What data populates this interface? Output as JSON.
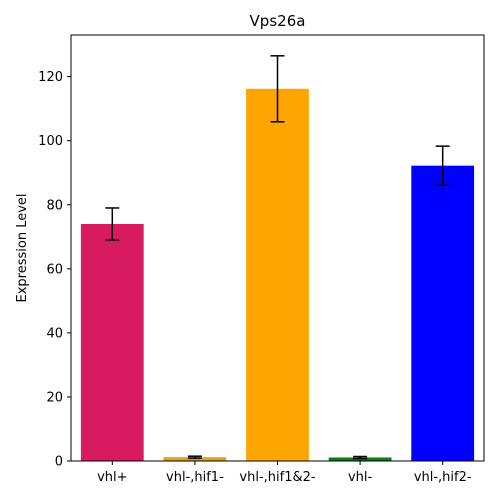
{
  "chart_data": {
    "type": "bar",
    "title": "Vps26a",
    "xlabel": "",
    "ylabel": "Expression Level",
    "ylim": [
      0,
      133
    ],
    "yticks": [
      0,
      20,
      40,
      60,
      80,
      100,
      120
    ],
    "grid": false,
    "categories": [
      "vhl+",
      "vhl-,hif1-",
      "vhl-,hif1&2-",
      "vhl-",
      "vhl-,hif2-"
    ],
    "values": [
      74,
      1.2,
      116.2,
      1.1,
      92.2
    ],
    "errors": [
      5,
      0.3,
      10.3,
      0.3,
      6.1
    ],
    "colors": [
      "#d81b60",
      "#e6a020",
      "#ffa500",
      "#0a7d14",
      "#0000ff"
    ]
  }
}
